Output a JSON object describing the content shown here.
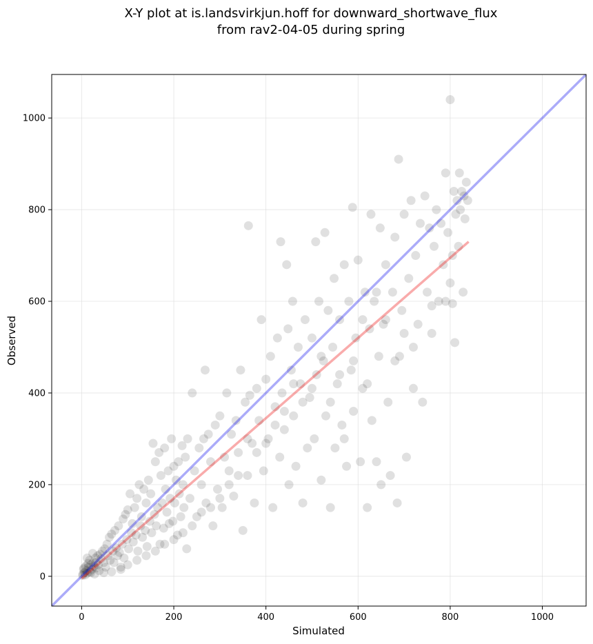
{
  "chart_data": {
    "type": "scatter",
    "title": "X-Y plot at is.landsvirkjun.hoff for downward_shortwave_flux",
    "subtitle": "from rav2-04-05 during spring",
    "xlabel": "Simulated",
    "ylabel": "Observed",
    "xlim": [
      -65,
      1095
    ],
    "ylim": [
      -65,
      1095
    ],
    "xticks": [
      0,
      200,
      400,
      600,
      800,
      1000
    ],
    "yticks": [
      0,
      200,
      400,
      600,
      800,
      1000
    ],
    "grid": true,
    "colors": {
      "points": "#000000",
      "one_to_one_line": "#0000ee",
      "fit_line": "#ee0000",
      "grid": "#d9d9d9"
    },
    "one_to_one_line": {
      "x": [
        -65,
        1095
      ],
      "y": [
        -65,
        1095
      ]
    },
    "fit_line": {
      "x": [
        0,
        840
      ],
      "y": [
        -5,
        730
      ]
    },
    "points": [
      [
        3,
        5
      ],
      [
        6,
        8
      ],
      [
        8,
        3
      ],
      [
        10,
        12
      ],
      [
        12,
        7
      ],
      [
        4,
        15
      ],
      [
        15,
        20
      ],
      [
        18,
        10
      ],
      [
        20,
        25
      ],
      [
        22,
        15
      ],
      [
        25,
        30
      ],
      [
        28,
        5
      ],
      [
        30,
        40
      ],
      [
        32,
        18
      ],
      [
        35,
        45
      ],
      [
        38,
        12
      ],
      [
        40,
        48
      ],
      [
        2,
        2
      ],
      [
        5,
        18
      ],
      [
        9,
        22
      ],
      [
        12,
        40
      ],
      [
        14,
        28
      ],
      [
        17,
        35
      ],
      [
        20,
        8
      ],
      [
        24,
        50
      ],
      [
        27,
        22
      ],
      [
        31,
        30
      ],
      [
        36,
        25
      ],
      [
        42,
        38
      ],
      [
        45,
        55
      ],
      [
        48,
        30
      ],
      [
        50,
        60
      ],
      [
        52,
        20
      ],
      [
        55,
        70
      ],
      [
        58,
        45
      ],
      [
        60,
        85
      ],
      [
        62,
        35
      ],
      [
        65,
        92
      ],
      [
        68,
        55
      ],
      [
        70,
        30
      ],
      [
        72,
        100
      ],
      [
        75,
        62
      ],
      [
        78,
        45
      ],
      [
        80,
        110
      ],
      [
        82,
        52
      ],
      [
        85,
        20
      ],
      [
        88,
        70
      ],
      [
        90,
        125
      ],
      [
        92,
        40
      ],
      [
        95,
        135
      ],
      [
        98,
        80
      ],
      [
        100,
        145
      ],
      [
        102,
        60
      ],
      [
        105,
        180
      ],
      [
        108,
        95
      ],
      [
        110,
        115
      ],
      [
        112,
        75
      ],
      [
        115,
        150
      ],
      [
        118,
        90
      ],
      [
        120,
        170
      ],
      [
        122,
        55
      ],
      [
        125,
        200
      ],
      [
        128,
        110
      ],
      [
        130,
        130
      ],
      [
        132,
        85
      ],
      [
        135,
        190
      ],
      [
        138,
        100
      ],
      [
        140,
        160
      ],
      [
        142,
        65
      ],
      [
        145,
        210
      ],
      [
        148,
        120
      ],
      [
        150,
        180
      ],
      [
        152,
        95
      ],
      [
        155,
        290
      ],
      [
        158,
        135
      ],
      [
        160,
        250
      ],
      [
        162,
        110
      ],
      [
        165,
        150
      ],
      [
        168,
        270
      ],
      [
        170,
        70
      ],
      [
        172,
        220
      ],
      [
        175,
        160
      ],
      [
        178,
        105
      ],
      [
        180,
        280
      ],
      [
        182,
        190
      ],
      [
        185,
        140
      ],
      [
        188,
        230
      ],
      [
        190,
        115
      ],
      [
        192,
        170
      ],
      [
        195,
        300
      ],
      [
        198,
        120
      ],
      [
        200,
        240
      ],
      [
        202,
        160
      ],
      [
        205,
        210
      ],
      [
        208,
        90
      ],
      [
        210,
        250
      ],
      [
        212,
        180
      ],
      [
        215,
        130
      ],
      [
        218,
        285
      ],
      [
        220,
        200
      ],
      [
        222,
        150
      ],
      [
        225,
        260
      ],
      [
        228,
        60
      ],
      [
        230,
        300
      ],
      [
        235,
        170
      ],
      [
        240,
        400
      ],
      [
        245,
        230
      ],
      [
        250,
        130
      ],
      [
        255,
        280
      ],
      [
        260,
        200
      ],
      [
        265,
        300
      ],
      [
        268,
        450
      ],
      [
        270,
        160
      ],
      [
        275,
        310
      ],
      [
        280,
        250
      ],
      [
        285,
        110
      ],
      [
        290,
        330
      ],
      [
        295,
        190
      ],
      [
        300,
        350
      ],
      [
        305,
        150
      ],
      [
        310,
        260
      ],
      [
        315,
        400
      ],
      [
        320,
        230
      ],
      [
        325,
        310
      ],
      [
        330,
        175
      ],
      [
        335,
        340
      ],
      [
        340,
        270
      ],
      [
        345,
        450
      ],
      [
        350,
        100
      ],
      [
        355,
        380
      ],
      [
        360,
        220
      ],
      [
        362,
        765
      ],
      [
        365,
        395
      ],
      [
        370,
        290
      ],
      [
        375,
        160
      ],
      [
        380,
        410
      ],
      [
        385,
        340
      ],
      [
        390,
        560
      ],
      [
        395,
        230
      ],
      [
        400,
        430
      ],
      [
        405,
        300
      ],
      [
        410,
        480
      ],
      [
        415,
        150
      ],
      [
        420,
        370
      ],
      [
        425,
        520
      ],
      [
        430,
        260
      ],
      [
        432,
        730
      ],
      [
        435,
        400
      ],
      [
        440,
        320
      ],
      [
        445,
        680
      ],
      [
        448,
        540
      ],
      [
        450,
        200
      ],
      [
        455,
        450
      ],
      [
        458,
        600
      ],
      [
        460,
        350
      ],
      [
        465,
        240
      ],
      [
        470,
        500
      ],
      [
        475,
        420
      ],
      [
        480,
        160
      ],
      [
        485,
        560
      ],
      [
        490,
        280
      ],
      [
        495,
        390
      ],
      [
        500,
        520
      ],
      [
        505,
        300
      ],
      [
        508,
        730
      ],
      [
        510,
        440
      ],
      [
        515,
        600
      ],
      [
        520,
        210
      ],
      [
        525,
        470
      ],
      [
        528,
        750
      ],
      [
        530,
        350
      ],
      [
        535,
        580
      ],
      [
        540,
        150
      ],
      [
        545,
        500
      ],
      [
        548,
        650
      ],
      [
        550,
        280
      ],
      [
        555,
        420
      ],
      [
        560,
        560
      ],
      [
        565,
        330
      ],
      [
        570,
        680
      ],
      [
        575,
        240
      ],
      [
        580,
        600
      ],
      [
        585,
        450
      ],
      [
        588,
        805
      ],
      [
        590,
        360
      ],
      [
        595,
        520
      ],
      [
        600,
        690
      ],
      [
        605,
        250
      ],
      [
        610,
        410
      ],
      [
        615,
        620
      ],
      [
        620,
        150
      ],
      [
        625,
        540
      ],
      [
        628,
        790
      ],
      [
        630,
        340
      ],
      [
        635,
        600
      ],
      [
        640,
        250
      ],
      [
        645,
        480
      ],
      [
        648,
        760
      ],
      [
        650,
        200
      ],
      [
        655,
        550
      ],
      [
        660,
        680
      ],
      [
        665,
        380
      ],
      [
        670,
        220
      ],
      [
        675,
        620
      ],
      [
        680,
        740
      ],
      [
        685,
        160
      ],
      [
        688,
        910
      ],
      [
        690,
        480
      ],
      [
        695,
        580
      ],
      [
        700,
        790
      ],
      [
        705,
        260
      ],
      [
        710,
        650
      ],
      [
        715,
        820
      ],
      [
        720,
        410
      ],
      [
        725,
        700
      ],
      [
        730,
        550
      ],
      [
        735,
        770
      ],
      [
        740,
        380
      ],
      [
        745,
        830
      ],
      [
        750,
        620
      ],
      [
        755,
        760
      ],
      [
        760,
        530
      ],
      [
        765,
        720
      ],
      [
        770,
        800
      ],
      [
        775,
        600
      ],
      [
        780,
        770
      ],
      [
        785,
        680
      ],
      [
        790,
        880
      ],
      [
        795,
        750
      ],
      [
        800,
        1040
      ],
      [
        805,
        700
      ],
      [
        808,
        840
      ],
      [
        810,
        510
      ],
      [
        812,
        790
      ],
      [
        815,
        820
      ],
      [
        818,
        720
      ],
      [
        820,
        880
      ],
      [
        822,
        800
      ],
      [
        825,
        840
      ],
      [
        828,
        620
      ],
      [
        830,
        830
      ],
      [
        832,
        780
      ],
      [
        835,
        860
      ],
      [
        838,
        820
      ],
      [
        790,
        600
      ],
      [
        800,
        640
      ],
      [
        805,
        595
      ],
      [
        760,
        590
      ],
      [
        720,
        500
      ],
      [
        700,
        530
      ],
      [
        680,
        470
      ],
      [
        660,
        560
      ],
      [
        640,
        620
      ],
      [
        620,
        420
      ],
      [
        610,
        560
      ],
      [
        590,
        470
      ],
      [
        570,
        300
      ],
      [
        560,
        440
      ],
      [
        540,
        380
      ],
      [
        520,
        480
      ],
      [
        500,
        410
      ],
      [
        480,
        380
      ],
      [
        460,
        420
      ],
      [
        440,
        360
      ],
      [
        420,
        330
      ],
      [
        400,
        290
      ],
      [
        380,
        270
      ],
      [
        360,
        300
      ],
      [
        340,
        220
      ],
      [
        320,
        200
      ],
      [
        300,
        170
      ],
      [
        280,
        150
      ],
      [
        260,
        140
      ],
      [
        240,
        110
      ],
      [
        220,
        95
      ],
      [
        200,
        80
      ],
      [
        180,
        70
      ],
      [
        160,
        55
      ],
      [
        140,
        45
      ],
      [
        120,
        35
      ],
      [
        100,
        25
      ],
      [
        85,
        15
      ],
      [
        65,
        10
      ],
      [
        48,
        8
      ]
    ]
  }
}
